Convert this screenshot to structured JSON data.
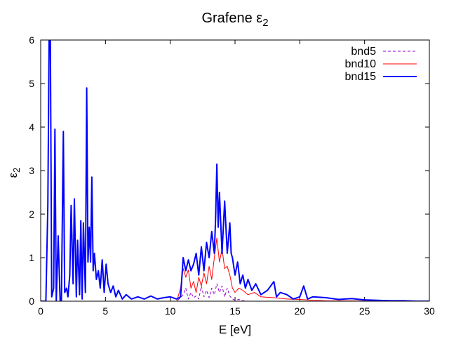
{
  "chart_data": {
    "type": "line",
    "title_main": "Grafene ε",
    "title_sub": "2",
    "xlabel": "E [eV]",
    "ylabel_main": "ε",
    "ylabel_sub": "2",
    "xlim": [
      0,
      30
    ],
    "ylim": [
      0,
      6
    ],
    "xticks": [
      0,
      5,
      10,
      15,
      20,
      25,
      30
    ],
    "yticks": [
      0,
      1,
      2,
      3,
      4,
      5,
      6
    ],
    "grid": false,
    "legend_position": "top-right",
    "series": [
      {
        "name": "bnd5",
        "color": "#9400d3",
        "style": "dashed",
        "x": [
          0,
          10.5,
          10.8,
          11.0,
          11.2,
          11.4,
          11.6,
          11.8,
          12.0,
          12.2,
          12.4,
          12.6,
          12.8,
          13.0,
          13.2,
          13.4,
          13.6,
          13.8,
          14.0,
          14.2,
          14.4,
          14.6,
          14.8,
          15.0,
          15.3,
          15.6,
          16.0,
          17.0,
          30
        ],
        "y": [
          0,
          0.0,
          0.08,
          0.15,
          0.3,
          0.05,
          0.2,
          0.08,
          0.12,
          0.05,
          0.35,
          0.1,
          0.25,
          0.08,
          0.3,
          0.15,
          0.4,
          0.2,
          0.35,
          0.1,
          0.3,
          0.12,
          0.05,
          0.02,
          0.04,
          0.01,
          0.0,
          0.0,
          0.0
        ]
      },
      {
        "name": "bnd10",
        "color": "#ff0000",
        "style": "solid",
        "x": [
          0,
          10.5,
          10.8,
          11.0,
          11.2,
          11.4,
          11.6,
          11.8,
          12.0,
          12.2,
          12.4,
          12.6,
          12.8,
          13.0,
          13.2,
          13.4,
          13.6,
          13.8,
          14.0,
          14.2,
          14.4,
          14.6,
          14.8,
          15.0,
          15.3,
          15.6,
          16.0,
          16.5,
          17.0,
          18.0,
          19.0,
          20.0,
          21.0,
          22.0,
          30
        ],
        "y": [
          0,
          0.0,
          0.3,
          0.75,
          0.55,
          0.72,
          0.3,
          0.45,
          0.2,
          0.55,
          0.35,
          0.65,
          0.4,
          0.8,
          0.5,
          1.0,
          1.45,
          0.9,
          1.2,
          0.75,
          0.8,
          0.6,
          0.3,
          0.2,
          0.3,
          0.25,
          0.15,
          0.2,
          0.1,
          0.08,
          0.05,
          0.04,
          0.02,
          0.01,
          0.0
        ]
      },
      {
        "name": "bnd15",
        "color": "#0000ff",
        "style": "solid",
        "x": [
          0,
          0.4,
          0.55,
          0.65,
          0.75,
          0.85,
          1.0,
          1.1,
          1.2,
          1.35,
          1.5,
          1.6,
          1.75,
          1.85,
          2.0,
          2.1,
          2.25,
          2.35,
          2.5,
          2.6,
          2.75,
          2.85,
          3.0,
          3.1,
          3.2,
          3.3,
          3.45,
          3.55,
          3.65,
          3.75,
          3.85,
          3.95,
          4.05,
          4.15,
          4.3,
          4.45,
          4.6,
          4.75,
          4.9,
          5.05,
          5.2,
          5.4,
          5.6,
          5.8,
          6.0,
          6.3,
          6.6,
          7.0,
          7.5,
          8.0,
          8.5,
          9.0,
          9.5,
          10.0,
          10.5,
          10.8,
          11.0,
          11.2,
          11.4,
          11.6,
          11.8,
          12.0,
          12.2,
          12.4,
          12.6,
          12.8,
          13.0,
          13.2,
          13.4,
          13.5,
          13.6,
          13.7,
          13.8,
          14.0,
          14.2,
          14.4,
          14.6,
          14.7,
          14.8,
          15.0,
          15.2,
          15.4,
          15.6,
          15.8,
          16.0,
          16.3,
          16.6,
          17.0,
          17.5,
          18.0,
          18.2,
          18.5,
          19.0,
          19.5,
          20.0,
          20.3,
          20.6,
          21.0,
          22.0,
          23.0,
          24.0,
          25.0,
          26.0,
          27.0,
          28.0,
          29.0,
          30
        ],
        "y": [
          0,
          0.0,
          2.2,
          6.0,
          6.0,
          0.1,
          0.3,
          3.95,
          0.0,
          1.5,
          0.0,
          0.0,
          3.9,
          0.2,
          0.3,
          0.1,
          0.6,
          2.2,
          0.4,
          2.35,
          0.1,
          1.4,
          0.15,
          1.85,
          0.05,
          1.8,
          0.2,
          4.9,
          0.9,
          1.7,
          0.9,
          2.85,
          0.7,
          1.1,
          0.5,
          0.7,
          0.3,
          0.95,
          0.2,
          0.85,
          0.4,
          0.2,
          0.35,
          0.1,
          0.25,
          0.05,
          0.15,
          0.05,
          0.1,
          0.05,
          0.12,
          0.05,
          0.08,
          0.1,
          0.05,
          0.1,
          1.0,
          0.7,
          0.95,
          0.7,
          0.85,
          1.1,
          0.6,
          1.25,
          0.7,
          1.35,
          1.0,
          1.6,
          1.1,
          1.9,
          3.15,
          1.7,
          2.5,
          1.1,
          2.3,
          1.1,
          1.8,
          1.1,
          1.0,
          0.6,
          0.9,
          0.4,
          0.6,
          0.3,
          0.5,
          0.25,
          0.4,
          0.15,
          0.25,
          0.45,
          0.1,
          0.2,
          0.15,
          0.05,
          0.1,
          0.35,
          0.05,
          0.1,
          0.08,
          0.04,
          0.06,
          0.03,
          0.02,
          0.01,
          0.01,
          0.0,
          0.0
        ]
      }
    ]
  }
}
